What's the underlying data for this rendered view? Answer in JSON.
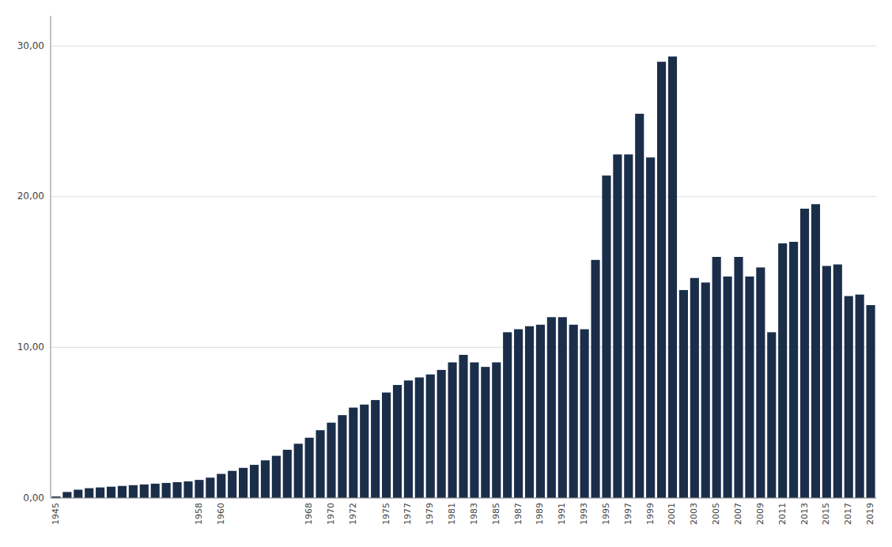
{
  "chart_data": {
    "type": "bar",
    "categories": [
      "1945",
      null,
      null,
      null,
      null,
      null,
      null,
      null,
      null,
      null,
      null,
      null,
      null,
      "1958",
      null,
      "1960",
      null,
      null,
      null,
      null,
      null,
      null,
      null,
      "1968",
      null,
      "1970",
      null,
      "1972",
      null,
      null,
      "1975",
      null,
      "1977",
      null,
      "1979",
      null,
      "1981",
      null,
      "1983",
      null,
      "1985",
      null,
      "1987",
      null,
      "1989",
      null,
      "1991",
      null,
      "1993",
      null,
      "1995",
      null,
      "1997",
      null,
      "1999",
      null,
      "2001",
      null,
      "2003",
      null,
      "2005",
      null,
      "2007",
      null,
      "2009",
      null,
      "2011",
      null,
      "2013",
      null,
      "2015",
      null,
      "2017",
      null,
      "2019"
    ],
    "values": [
      0.1,
      0.4,
      0.55,
      0.65,
      0.7,
      0.75,
      0.8,
      0.85,
      0.9,
      0.95,
      1.0,
      1.05,
      1.1,
      1.2,
      1.35,
      1.6,
      1.8,
      2.0,
      2.2,
      2.5,
      2.8,
      3.2,
      3.6,
      4.0,
      4.5,
      5.0,
      5.5,
      6.0,
      6.2,
      6.5,
      7.0,
      7.5,
      7.8,
      8.0,
      8.2,
      8.5,
      9.0,
      9.5,
      9.0,
      8.7,
      9.0,
      11.0,
      11.2,
      11.4,
      11.5,
      12.0,
      12.0,
      11.5,
      11.2,
      15.8,
      21.4,
      22.8,
      22.8,
      25.5,
      22.6,
      28.95,
      29.3,
      13.8,
      14.6,
      14.3,
      16.0,
      14.7,
      16.0,
      14.7,
      15.3,
      11.0,
      16.9,
      17.0,
      19.2,
      19.5,
      15.4,
      15.5,
      13.4,
      13.5,
      12.8
    ],
    "color": "#1a2e4a",
    "ylim": [
      0,
      32
    ],
    "yticks": [
      {
        "value": 0.0,
        "label": "0,00"
      },
      {
        "value": 10.0,
        "label": "10,00"
      },
      {
        "value": 20.0,
        "label": "20,00"
      },
      {
        "value": 30.0,
        "label": "30,00"
      }
    ],
    "grid": true
  }
}
